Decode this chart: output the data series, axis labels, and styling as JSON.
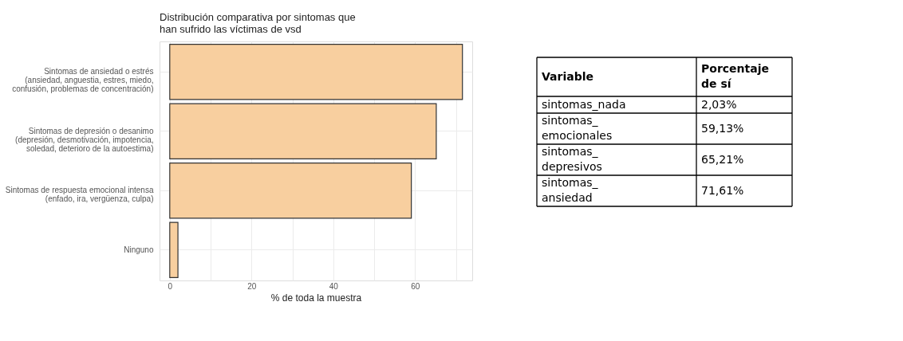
{
  "chart_data": [
    {
      "type": "bar",
      "orientation": "horizontal",
      "title": "Distribución comparativa por sintomas que\nhan sufrido las víctimas de vsd",
      "xlabel": "% de toda la muestra",
      "categories": [
        "Sintomas de ansiedad o estrés\n(ansiedad, anguestia, estres, miedo,\nconfusión, problemas de concentración)",
        "Sintomas de depresión o desanimo\n(depresión, desmotivación, impotencia,\nsoledad, deterioro de la autoestima)",
        "Sintomas de respuesta emocional intensa\n(enfado, ira, vergüenza, culpa)",
        "Ninguno"
      ],
      "values": [
        71.6,
        65.2,
        59.1,
        2.0
      ],
      "color": "#f8cf9f",
      "xlim": [
        -2.5,
        74
      ],
      "xticks": [
        0,
        {
          "value": 10,
          "label": null
        },
        20,
        {
          "value": 30,
          "label": null
        },
        40,
        {
          "value": 50,
          "label": null
        },
        60,
        {
          "value": 70,
          "label": null
        }
      ],
      "grid": true,
      "legend": false
    },
    {
      "type": "other",
      "annotations": [
        "Variable",
        "Porcentaje de sí"
      ],
      "categories": [
        "sintomas_nada",
        "sintomas_emocionales",
        "sintomas_depresivos",
        "sintomas_ansiedad"
      ],
      "value_labels": [
        "2,03%",
        "59,13%",
        "65,21%",
        "71,61%"
      ]
    }
  ]
}
